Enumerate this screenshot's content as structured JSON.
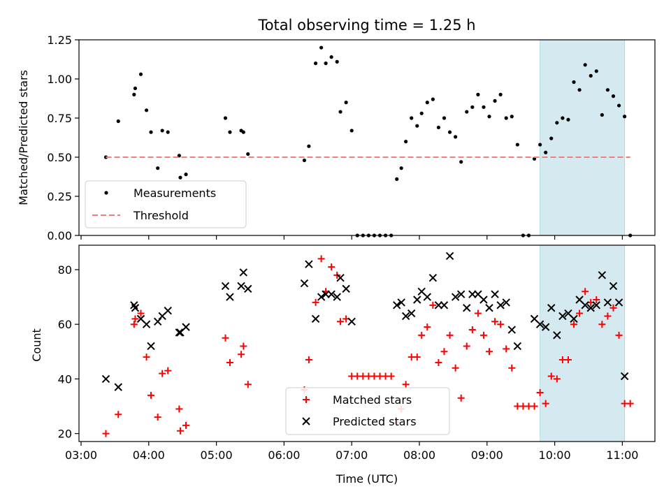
{
  "chart_data": [
    {
      "type": "scatter",
      "title": "Total observing time = 1.25 h",
      "ylabel": "Matched/Predicted stars",
      "xlabel": "",
      "ylim": [
        0,
        1.25
      ],
      "xlim": [
        "03:00",
        "11:30"
      ],
      "yticks": [
        "0.00",
        "0.25",
        "0.50",
        "0.75",
        "1.00",
        "1.25"
      ],
      "highlight_span": {
        "from": "09:47",
        "to": "11:02",
        "color": "#d4eaf0"
      },
      "grid": false,
      "legend_position": "lower-left",
      "series": [
        {
          "name": "Measurements",
          "marker": "dot",
          "color": "#000000",
          "points": [
            [
              "03:22",
              0.5
            ],
            [
              "03:33",
              0.73
            ],
            [
              "03:47",
              0.9
            ],
            [
              "03:48",
              0.94
            ],
            [
              "03:53",
              1.03
            ],
            [
              "03:58",
              0.8
            ],
            [
              "04:02",
              0.66
            ],
            [
              "04:08",
              0.43
            ],
            [
              "04:12",
              0.67
            ],
            [
              "04:17",
              0.66
            ],
            [
              "04:27",
              0.51
            ],
            [
              "04:28",
              0.37
            ],
            [
              "04:33",
              0.39
            ],
            [
              "05:08",
              0.75
            ],
            [
              "05:12",
              0.66
            ],
            [
              "05:22",
              0.67
            ],
            [
              "05:24",
              0.66
            ],
            [
              "05:28",
              0.52
            ],
            [
              "06:18",
              0.48
            ],
            [
              "06:22",
              0.57
            ],
            [
              "06:28",
              1.1
            ],
            [
              "06:33",
              1.2
            ],
            [
              "06:37",
              1.1
            ],
            [
              "06:42",
              1.14
            ],
            [
              "06:47",
              1.11
            ],
            [
              "06:50",
              0.79
            ],
            [
              "06:55",
              0.85
            ],
            [
              "07:00",
              0.67
            ],
            [
              "07:05",
              0.0
            ],
            [
              "07:10",
              0.0
            ],
            [
              "07:15",
              0.0
            ],
            [
              "07:20",
              0.0
            ],
            [
              "07:25",
              0.0
            ],
            [
              "07:30",
              0.0
            ],
            [
              "07:35",
              0.0
            ],
            [
              "07:40",
              0.36
            ],
            [
              "07:44",
              0.43
            ],
            [
              "07:48",
              0.6
            ],
            [
              "07:53",
              0.75
            ],
            [
              "07:58",
              0.7
            ],
            [
              "08:02",
              0.78
            ],
            [
              "08:07",
              0.85
            ],
            [
              "08:12",
              0.87
            ],
            [
              "08:17",
              0.69
            ],
            [
              "08:22",
              0.75
            ],
            [
              "08:27",
              0.66
            ],
            [
              "08:32",
              0.63
            ],
            [
              "08:37",
              0.47
            ],
            [
              "08:42",
              0.79
            ],
            [
              "08:47",
              0.82
            ],
            [
              "08:52",
              0.9
            ],
            [
              "08:57",
              0.82
            ],
            [
              "09:02",
              0.76
            ],
            [
              "09:07",
              0.86
            ],
            [
              "09:12",
              0.9
            ],
            [
              "09:17",
              0.75
            ],
            [
              "09:22",
              0.76
            ],
            [
              "09:27",
              0.58
            ],
            [
              "09:32",
              0.0
            ],
            [
              "09:37",
              0.0
            ],
            [
              "09:42",
              0.49
            ],
            [
              "09:47",
              0.58
            ],
            [
              "09:52",
              0.53
            ],
            [
              "09:57",
              0.62
            ],
            [
              "10:02",
              0.72
            ],
            [
              "10:07",
              0.75
            ],
            [
              "10:12",
              0.74
            ],
            [
              "10:17",
              0.98
            ],
            [
              "10:22",
              0.93
            ],
            [
              "10:27",
              1.09
            ],
            [
              "10:32",
              1.02
            ],
            [
              "10:37",
              1.05
            ],
            [
              "10:42",
              0.77
            ],
            [
              "10:47",
              0.93
            ],
            [
              "10:52",
              0.89
            ],
            [
              "10:57",
              0.83
            ],
            [
              "11:02",
              0.76
            ],
            [
              "11:07",
              0.0
            ]
          ]
        },
        {
          "name": "Threshold",
          "marker": "dashed-line",
          "color": "#f08080",
          "points": [
            [
              "03:22",
              0.5
            ],
            [
              "11:07",
              0.5
            ]
          ]
        }
      ]
    },
    {
      "type": "scatter",
      "title": "",
      "xlabel": "Time (UTC)",
      "ylabel": "Count",
      "ylim": [
        16.5,
        89
      ],
      "yticks": [
        "20",
        "40",
        "60",
        "80"
      ],
      "xticks": [
        "03:00",
        "04:00",
        "05:00",
        "06:00",
        "07:00",
        "08:00",
        "09:00",
        "10:00",
        "11:00"
      ],
      "highlight_span": {
        "from": "09:47",
        "to": "11:02",
        "color": "#d4eaf0"
      },
      "grid": false,
      "legend_position": "lower-center",
      "series": [
        {
          "name": "Matched stars",
          "marker": "plus",
          "color": "#ff0000",
          "points": [
            [
              "03:22",
              20
            ],
            [
              "03:33",
              27
            ],
            [
              "03:47",
              60
            ],
            [
              "03:48",
              62
            ],
            [
              "03:53",
              64
            ],
            [
              "03:58",
              48
            ],
            [
              "04:02",
              34
            ],
            [
              "04:08",
              26
            ],
            [
              "04:12",
              42
            ],
            [
              "04:17",
              43
            ],
            [
              "04:27",
              29
            ],
            [
              "04:28",
              21
            ],
            [
              "04:33",
              23
            ],
            [
              "05:08",
              55
            ],
            [
              "05:12",
              46
            ],
            [
              "05:22",
              49
            ],
            [
              "05:24",
              52
            ],
            [
              "05:28",
              38
            ],
            [
              "06:18",
              36
            ],
            [
              "06:22",
              47
            ],
            [
              "06:28",
              68
            ],
            [
              "06:33",
              84
            ],
            [
              "06:37",
              72
            ],
            [
              "06:42",
              81
            ],
            [
              "06:47",
              78
            ],
            [
              "06:50",
              61
            ],
            [
              "06:55",
              62
            ],
            [
              "07:00",
              41
            ],
            [
              "07:05",
              41
            ],
            [
              "07:10",
              41
            ],
            [
              "07:15",
              41
            ],
            [
              "07:20",
              41
            ],
            [
              "07:25",
              41
            ],
            [
              "07:30",
              41
            ],
            [
              "07:35",
              41
            ],
            [
              "07:40",
              24
            ],
            [
              "07:44",
              29
            ],
            [
              "07:48",
              38
            ],
            [
              "07:53",
              48
            ],
            [
              "07:58",
              48
            ],
            [
              "08:02",
              56
            ],
            [
              "08:07",
              59
            ],
            [
              "08:12",
              67
            ],
            [
              "08:17",
              46
            ],
            [
              "08:22",
              50
            ],
            [
              "08:27",
              56
            ],
            [
              "08:32",
              44
            ],
            [
              "08:37",
              33
            ],
            [
              "08:42",
              52
            ],
            [
              "08:47",
              58
            ],
            [
              "08:52",
              64
            ],
            [
              "08:57",
              56
            ],
            [
              "09:02",
              50
            ],
            [
              "09:07",
              61
            ],
            [
              "09:12",
              60
            ],
            [
              "09:17",
              51
            ],
            [
              "09:22",
              44
            ],
            [
              "09:27",
              30
            ],
            [
              "09:32",
              30
            ],
            [
              "09:37",
              30
            ],
            [
              "09:42",
              30
            ],
            [
              "09:47",
              35
            ],
            [
              "09:52",
              31
            ],
            [
              "09:57",
              41
            ],
            [
              "10:02",
              40
            ],
            [
              "10:07",
              47
            ],
            [
              "10:12",
              47
            ],
            [
              "10:17",
              60
            ],
            [
              "10:22",
              64
            ],
            [
              "10:27",
              72
            ],
            [
              "10:32",
              68
            ],
            [
              "10:37",
              69
            ],
            [
              "10:42",
              60
            ],
            [
              "10:47",
              63
            ],
            [
              "10:52",
              66
            ],
            [
              "10:57",
              56
            ],
            [
              "11:02",
              31
            ],
            [
              "11:07",
              31
            ]
          ]
        },
        {
          "name": "Predicted stars",
          "marker": "x",
          "color": "#000000",
          "points": [
            [
              "03:22",
              40
            ],
            [
              "03:33",
              37
            ],
            [
              "03:47",
              67
            ],
            [
              "03:48",
              66
            ],
            [
              "03:53",
              62
            ],
            [
              "03:58",
              60
            ],
            [
              "04:02",
              52
            ],
            [
              "04:08",
              61
            ],
            [
              "04:12",
              63
            ],
            [
              "04:17",
              65
            ],
            [
              "04:27",
              57
            ],
            [
              "04:28",
              57
            ],
            [
              "04:33",
              59
            ],
            [
              "05:08",
              74
            ],
            [
              "05:12",
              70
            ],
            [
              "05:22",
              74
            ],
            [
              "05:24",
              79
            ],
            [
              "05:28",
              73
            ],
            [
              "06:18",
              75
            ],
            [
              "06:22",
              82
            ],
            [
              "06:28",
              62
            ],
            [
              "06:33",
              70
            ],
            [
              "06:37",
              71
            ],
            [
              "06:42",
              71
            ],
            [
              "06:47",
              70
            ],
            [
              "06:50",
              77
            ],
            [
              "06:55",
              73
            ],
            [
              "07:00",
              61
            ],
            [
              "07:40",
              67
            ],
            [
              "07:44",
              68
            ],
            [
              "07:48",
              63
            ],
            [
              "07:53",
              64
            ],
            [
              "07:58",
              69
            ],
            [
              "08:02",
              72
            ],
            [
              "08:07",
              70
            ],
            [
              "08:12",
              77
            ],
            [
              "08:17",
              67
            ],
            [
              "08:22",
              67
            ],
            [
              "08:27",
              85
            ],
            [
              "08:32",
              70
            ],
            [
              "08:37",
              71
            ],
            [
              "08:42",
              66
            ],
            [
              "08:47",
              71
            ],
            [
              "08:52",
              71
            ],
            [
              "08:57",
              69
            ],
            [
              "09:02",
              66
            ],
            [
              "09:07",
              71
            ],
            [
              "09:12",
              67
            ],
            [
              "09:17",
              68
            ],
            [
              "09:22",
              58
            ],
            [
              "09:27",
              52
            ],
            [
              "09:42",
              62
            ],
            [
              "09:47",
              60
            ],
            [
              "09:52",
              59
            ],
            [
              "09:57",
              66
            ],
            [
              "10:02",
              56
            ],
            [
              "10:07",
              63
            ],
            [
              "10:12",
              64
            ],
            [
              "10:17",
              62
            ],
            [
              "10:22",
              69
            ],
            [
              "10:27",
              67
            ],
            [
              "10:32",
              66
            ],
            [
              "10:37",
              67
            ],
            [
              "10:42",
              78
            ],
            [
              "10:47",
              68
            ],
            [
              "10:52",
              74
            ],
            [
              "10:57",
              68
            ],
            [
              "11:02",
              41
            ]
          ]
        }
      ]
    }
  ]
}
